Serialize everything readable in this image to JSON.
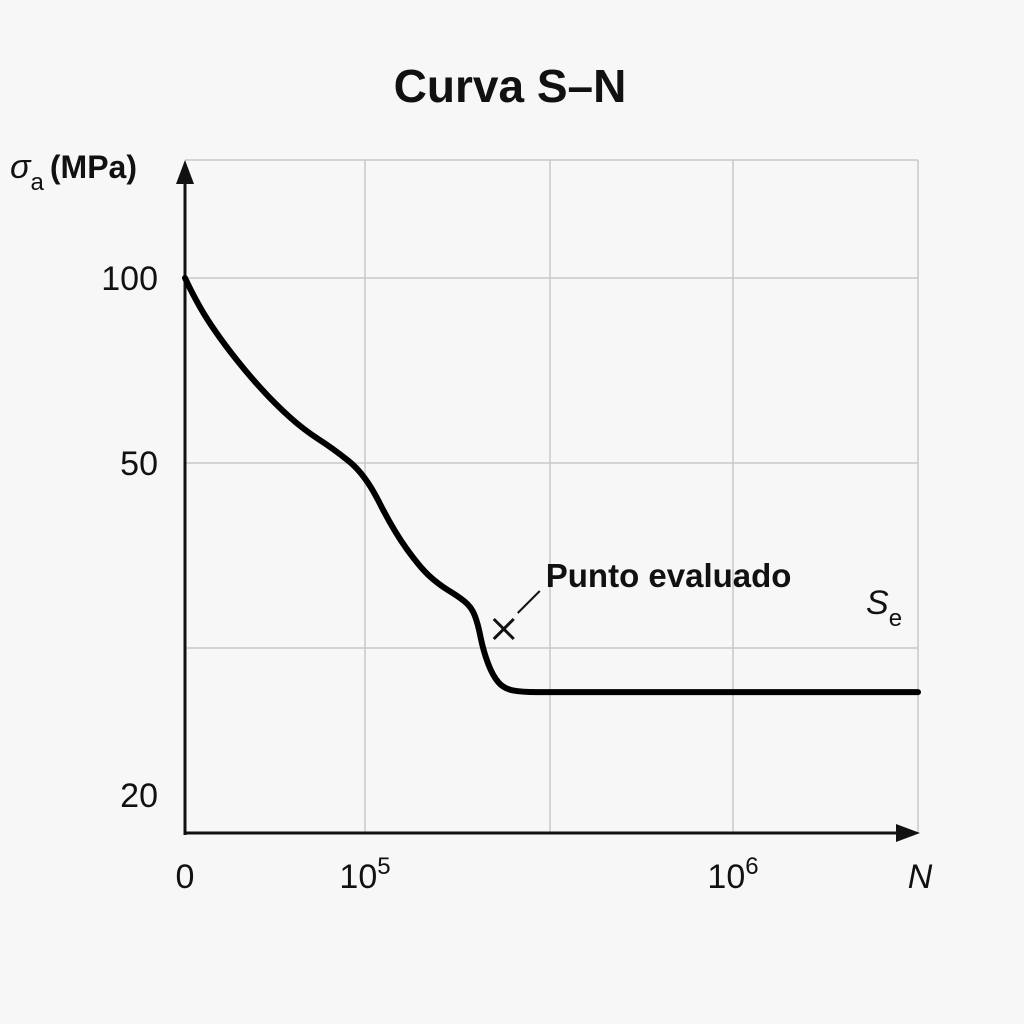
{
  "chart_data": {
    "type": "line",
    "title": "Curva S–N",
    "ylabel": {
      "symbol": "σ",
      "subscript": "a",
      "unit": "(MPa)"
    },
    "xlabel": "N",
    "y_ticks": [
      {
        "value": 100,
        "label": "100"
      },
      {
        "value": 50,
        "label": "50"
      },
      {
        "value": 20,
        "label": "20"
      }
    ],
    "x_ticks": [
      {
        "label": "0",
        "base": "0",
        "exp": ""
      },
      {
        "label": "10^5",
        "base": "10",
        "exp": "5"
      },
      {
        "label": "10^6",
        "base": "10",
        "exp": "6"
      }
    ],
    "grid": true,
    "series": [
      {
        "points": [
          {
            "N": 0,
            "S": 100
          },
          {
            "N": 5000,
            "S": 95
          },
          {
            "N": 12000,
            "S": 89
          },
          {
            "N": 22000,
            "S": 82
          },
          {
            "N": 35000,
            "S": 74
          },
          {
            "N": 50000,
            "S": 66
          },
          {
            "N": 66000,
            "S": 59
          },
          {
            "N": 82000,
            "S": 54
          },
          {
            "N": 100000,
            "S": 49
          },
          {
            "N": 130000,
            "S": 44
          },
          {
            "N": 160000,
            "S": 40.5
          },
          {
            "N": 180000,
            "S": 39
          },
          {
            "N": 200000,
            "S": 38
          },
          {
            "N": 215000,
            "S": 37
          },
          {
            "N": 222000,
            "S": 35.5
          },
          {
            "N": 228000,
            "S": 33
          },
          {
            "N": 238000,
            "S": 30.8
          },
          {
            "N": 250000,
            "S": 29.6
          },
          {
            "N": 270000,
            "S": 29.3
          },
          {
            "N": 300000,
            "S": 29.3
          },
          {
            "N": 500000,
            "S": 29.3
          },
          {
            "N": 1000000,
            "S": 29.3
          }
        ]
      }
    ],
    "endurance_limit": {
      "symbol": "S",
      "subscript": "e",
      "value": 29.3
    },
    "annotation": {
      "label": "Punto evaluado",
      "marker": "cross",
      "N": 250000,
      "S": 35
    }
  }
}
